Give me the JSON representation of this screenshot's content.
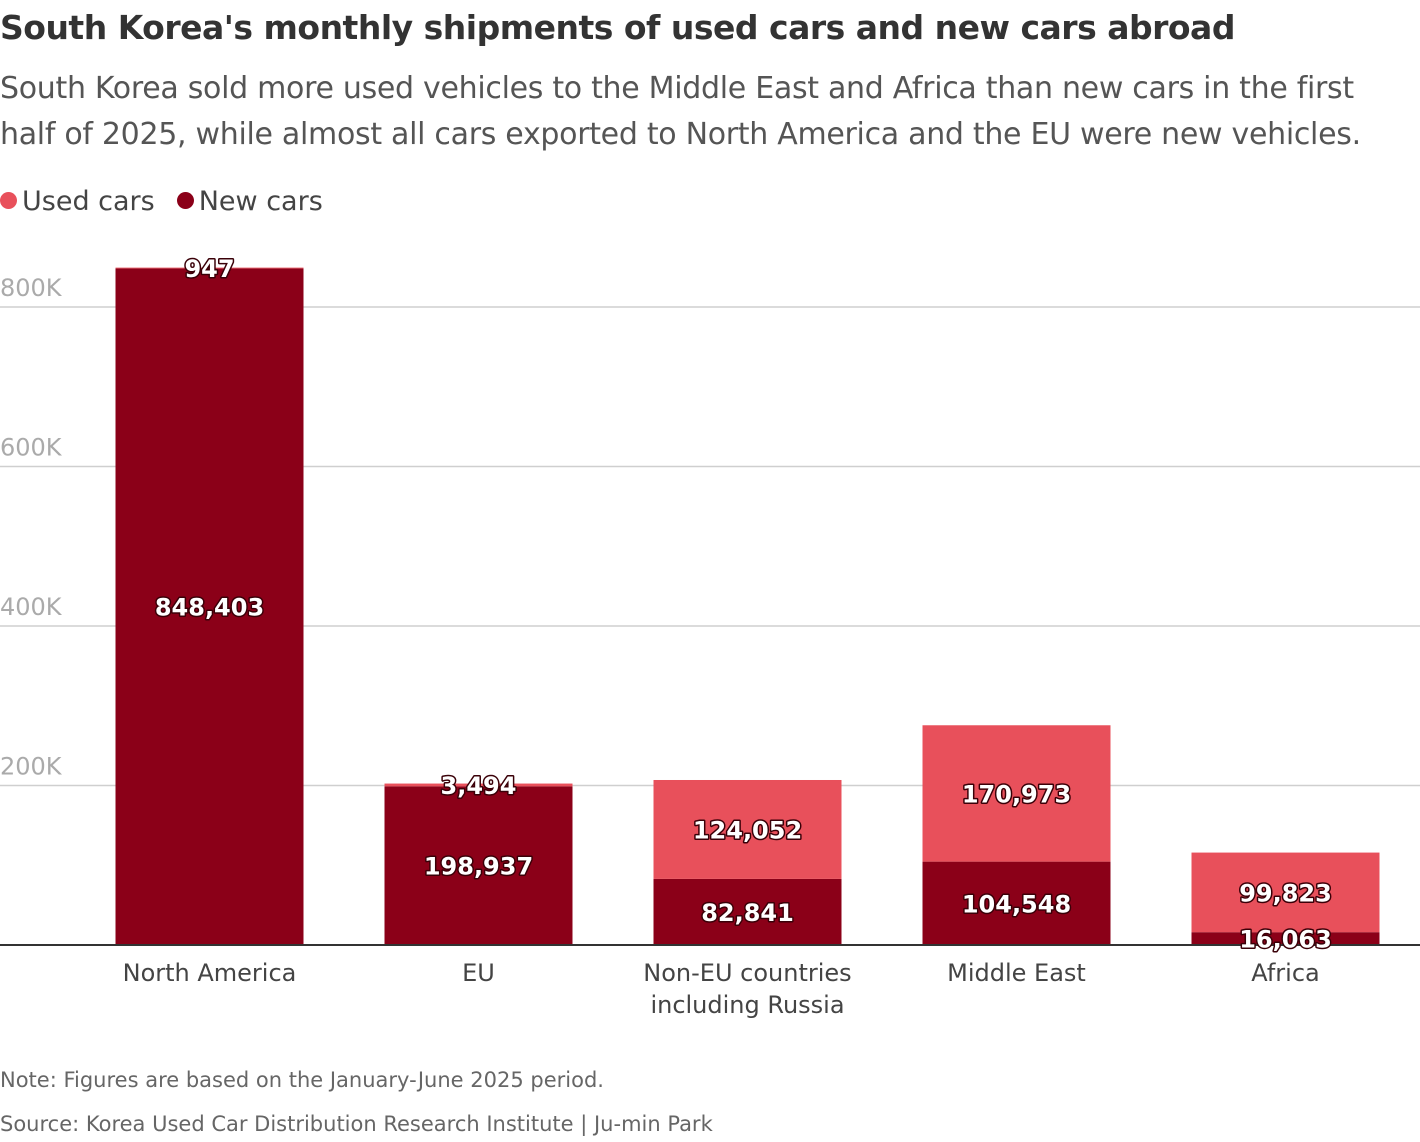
{
  "chart_data": {
    "type": "stacked_bar",
    "title": "South Korea's monthly shipments of used cars and new cars abroad",
    "subtitle": "South Korea sold more used vehicles to the Middle East and Africa than new cars in the first half of 2025, while almost all cars exported to North America and the EU were new vehicles.",
    "categories": [
      "North America",
      "EU",
      "Non-EU countries including Russia",
      "Middle East",
      "Africa"
    ],
    "series": [
      {
        "name": "Used cars",
        "color": "#e8505b",
        "values": [
          947,
          3494,
          124052,
          170973,
          99823
        ],
        "value_labels": [
          "947",
          "3,494",
          "124,052",
          "170,973",
          "99,823"
        ]
      },
      {
        "name": "New cars",
        "color": "#8b0018",
        "values": [
          848403,
          198937,
          82841,
          104548,
          16063
        ],
        "value_labels": [
          "848,403",
          "198,937",
          "82,841",
          "104,548",
          "16,063"
        ]
      }
    ],
    "ylim": [
      0,
      850000
    ],
    "yticks": [
      {
        "value": 200000,
        "label": "200K"
      },
      {
        "value": 400000,
        "label": "400K"
      },
      {
        "value": 600000,
        "label": "600K"
      },
      {
        "value": 800000,
        "label": "800K"
      }
    ],
    "grid": true,
    "note": "Note: Figures are based on the January-June 2025 period.",
    "source": "Source: Korea Used Car Distribution Research Institute | Ju-min Park"
  }
}
